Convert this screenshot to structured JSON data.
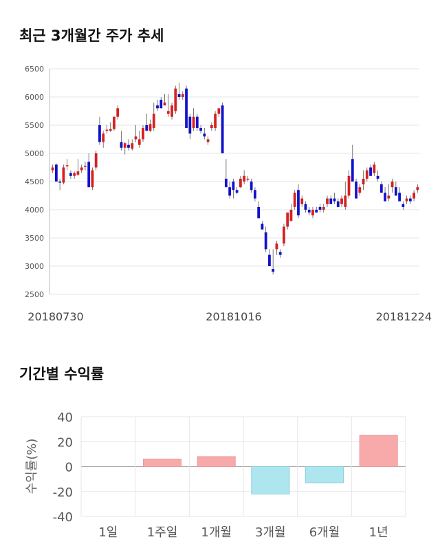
{
  "section1": {
    "title": "최근 3개월간 주가 추세"
  },
  "section2": {
    "title": "기간별 수익률"
  },
  "colors": {
    "up": "#d62020",
    "down": "#1111cc",
    "bar_pos": "#f8a9aa",
    "bar_neg": "#aee6f0",
    "grid": "#e6e6e6"
  },
  "chart_data": [
    {
      "type": "candlestick",
      "title": "최근 3개월간 주가 추세",
      "ylim": [
        2500,
        6500
      ],
      "yticks": [
        2500,
        3000,
        3500,
        4000,
        4500,
        5000,
        5500,
        6000,
        6500
      ],
      "x_tick_labels": [
        "20180730",
        "20181016",
        "20181224"
      ],
      "grid": true,
      "ohlc": [
        [
          4700,
          4800,
          4650,
          4750
        ],
        [
          4800,
          4820,
          4500,
          4500
        ],
        [
          4500,
          4550,
          4350,
          4480
        ],
        [
          4480,
          4800,
          4450,
          4750
        ],
        [
          4770,
          4900,
          4700,
          4790
        ],
        [
          4650,
          4700,
          4550,
          4600
        ],
        [
          4600,
          4680,
          4550,
          4650
        ],
        [
          4620,
          4900,
          4600,
          4680
        ],
        [
          4700,
          4800,
          4650,
          4750
        ],
        [
          4760,
          4850,
          4700,
          4780
        ],
        [
          4850,
          5000,
          4400,
          4400
        ],
        [
          4400,
          4750,
          4350,
          4700
        ],
        [
          4750,
          5050,
          4700,
          5000
        ],
        [
          5500,
          5650,
          5150,
          5200
        ],
        [
          5200,
          5400,
          5100,
          5350
        ],
        [
          5400,
          5500,
          5350,
          5420
        ],
        [
          5400,
          5550,
          5380,
          5430
        ],
        [
          5430,
          5650,
          5400,
          5650
        ],
        [
          5650,
          5850,
          5600,
          5800
        ],
        [
          5200,
          5400,
          5050,
          5100
        ],
        [
          5100,
          5200,
          4980,
          5180
        ],
        [
          5150,
          5250,
          5050,
          5100
        ],
        [
          5080,
          5250,
          5050,
          5180
        ],
        [
          5250,
          5500,
          5200,
          5300
        ],
        [
          5150,
          5400,
          5100,
          5250
        ],
        [
          5250,
          5500,
          5200,
          5450
        ],
        [
          5500,
          5700,
          5400,
          5400
        ],
        [
          5400,
          5600,
          5380,
          5520
        ],
        [
          5450,
          5900,
          5400,
          5700
        ],
        [
          5850,
          5950,
          5750,
          5800
        ],
        [
          5950,
          6000,
          5800,
          5800
        ],
        [
          5850,
          6050,
          5850,
          5900
        ],
        [
          5700,
          6050,
          5650,
          5750
        ],
        [
          5650,
          5900,
          5600,
          5850
        ],
        [
          5750,
          6200,
          5700,
          6150
        ],
        [
          6050,
          6250,
          5950,
          6000
        ],
        [
          6000,
          6100,
          5950,
          6050
        ],
        [
          6150,
          6200,
          5450,
          5450
        ],
        [
          5650,
          5700,
          5250,
          5350
        ],
        [
          5450,
          5800,
          5400,
          5650
        ],
        [
          5650,
          5700,
          5400,
          5450
        ],
        [
          5450,
          5500,
          5350,
          5400
        ],
        [
          5350,
          5450,
          5250,
          5300
        ],
        [
          5200,
          5300,
          5150,
          5250
        ],
        [
          5450,
          5550,
          5400,
          5500
        ],
        [
          5450,
          5750,
          5400,
          5700
        ],
        [
          5700,
          5800,
          5650,
          5800
        ],
        [
          5850,
          5900,
          5000,
          5000
        ],
        [
          4550,
          4900,
          4400,
          4400
        ],
        [
          4400,
          4500,
          4200,
          4250
        ],
        [
          4500,
          4550,
          4200,
          4350
        ],
        [
          4350,
          4400,
          4280,
          4300
        ],
        [
          4400,
          4600,
          4380,
          4550
        ],
        [
          4500,
          4700,
          4450,
          4600
        ],
        [
          4550,
          4600,
          4500,
          4550
        ],
        [
          4500,
          4550,
          4300,
          4350
        ],
        [
          4350,
          4400,
          4150,
          4200
        ],
        [
          4050,
          4150,
          3850,
          3850
        ],
        [
          3750,
          3800,
          3650,
          3650
        ],
        [
          3600,
          3700,
          3250,
          3300
        ],
        [
          3200,
          3300,
          3000,
          3000
        ],
        [
          2950,
          3300,
          2850,
          2900
        ],
        [
          3300,
          3450,
          3200,
          3400
        ],
        [
          3250,
          3300,
          3150,
          3200
        ],
        [
          3400,
          3750,
          3350,
          3700
        ],
        [
          3700,
          3950,
          3650,
          3950
        ],
        [
          3800,
          4100,
          3800,
          4000
        ],
        [
          4050,
          4350,
          4000,
          4300
        ],
        [
          4350,
          4450,
          3850,
          3900
        ],
        [
          4100,
          4250,
          4050,
          4200
        ],
        [
          4100,
          4150,
          3950,
          4000
        ],
        [
          4000,
          4050,
          3900,
          3950
        ],
        [
          3900,
          4050,
          3850,
          4000
        ],
        [
          4000,
          4050,
          3950,
          3950
        ],
        [
          4050,
          4100,
          3950,
          4000
        ],
        [
          4000,
          4100,
          3950,
          4050
        ],
        [
          4100,
          4250,
          4050,
          4200
        ],
        [
          4200,
          4250,
          4100,
          4100
        ],
        [
          4200,
          4300,
          4100,
          4150
        ],
        [
          4150,
          4200,
          4050,
          4050
        ],
        [
          4100,
          4250,
          4050,
          4200
        ],
        [
          4050,
          4500,
          4000,
          4250
        ],
        [
          4250,
          4700,
          4200,
          4600
        ],
        [
          4900,
          5150,
          4500,
          4500
        ],
        [
          4500,
          4550,
          4200,
          4200
        ],
        [
          4300,
          4450,
          4250,
          4400
        ],
        [
          4450,
          4700,
          4350,
          4550
        ],
        [
          4550,
          4750,
          4500,
          4700
        ],
        [
          4750,
          4800,
          4600,
          4600
        ],
        [
          4650,
          4850,
          4600,
          4800
        ],
        [
          4600,
          4700,
          4500,
          4550
        ],
        [
          4450,
          4500,
          4300,
          4300
        ],
        [
          4300,
          4400,
          4150,
          4150
        ],
        [
          4200,
          4450,
          4150,
          4250
        ],
        [
          4400,
          4550,
          4300,
          4500
        ],
        [
          4400,
          4500,
          4250,
          4250
        ],
        [
          4300,
          4400,
          4150,
          4150
        ],
        [
          4100,
          4150,
          4000,
          4050
        ],
        [
          4150,
          4250,
          4100,
          4200
        ],
        [
          4200,
          4250,
          4100,
          4150
        ],
        [
          4200,
          4350,
          4150,
          4300
        ],
        [
          4350,
          4450,
          4300,
          4400
        ]
      ]
    },
    {
      "type": "bar",
      "title": "기간별 수익률",
      "categories": [
        "1일",
        "1주일",
        "1개월",
        "3개월",
        "6개월",
        "1년"
      ],
      "values": [
        0,
        6,
        8,
        -22,
        -13,
        25
      ],
      "ylabel": "수익률(%)",
      "ylim": [
        -40,
        40
      ],
      "yticks": [
        40,
        20,
        0,
        -20,
        -40
      ],
      "grid": true
    }
  ]
}
